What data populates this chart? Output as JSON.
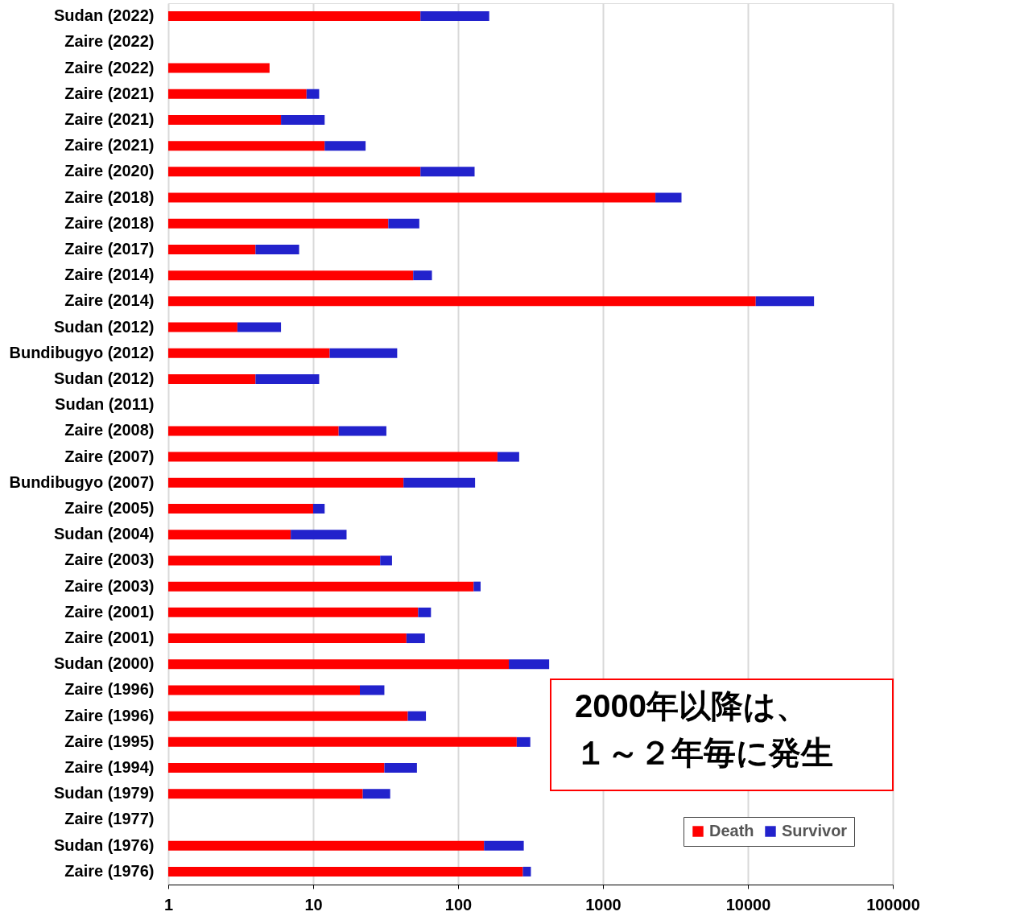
{
  "chart_data": {
    "type": "bar",
    "orientation": "horizontal",
    "stacked": true,
    "log": "x",
    "categories": [
      "Sudan (2022)",
      "Zaire (2022)",
      "Zaire (2022)",
      "Zaire (2021)",
      "Zaire (2021)",
      "Zaire (2021)",
      "Zaire (2020)",
      "Zaire (2018)",
      "Zaire (2018)",
      "Zaire (2017)",
      "Zaire (2014)",
      "Zaire (2014)",
      "Sudan (2012)",
      "Bundibugyo (2012)",
      "Sudan (2012)",
      "Sudan (2011)",
      "Zaire (2008)",
      "Zaire (2007)",
      "Bundibugyo (2007)",
      "Zaire (2005)",
      "Sudan (2004)",
      "Zaire (2003)",
      "Zaire (2003)",
      "Zaire (2001)",
      "Zaire (2001)",
      "Sudan (2000)",
      "Zaire (1996)",
      "Zaire (1996)",
      "Zaire (1995)",
      "Zaire (1994)",
      "Sudan (1979)",
      "Zaire (1977)",
      "Sudan (1976)",
      "Zaire (1976)"
    ],
    "series": [
      {
        "name": "Death",
        "color": "#ff0000",
        "values": [
          55,
          null,
          5,
          9,
          6,
          12,
          55,
          2299,
          33,
          4,
          49,
          11325,
          3,
          13,
          4,
          null,
          15,
          187,
          42,
          10,
          7,
          29,
          128,
          53,
          44,
          224,
          21,
          45,
          254,
          31,
          22,
          null,
          151,
          280
        ]
      },
      {
        "name": "Survivor",
        "color": "#2222cc",
        "values": [
          109,
          null,
          null,
          2,
          6,
          11,
          75,
          1182,
          21,
          4,
          17,
          17275,
          3,
          25,
          7,
          null,
          17,
          77,
          89,
          2,
          10,
          6,
          15,
          12,
          15,
          201,
          10,
          15,
          61,
          21,
          12,
          null,
          133,
          38
        ]
      }
    ],
    "xlim": [
      1,
      100000
    ],
    "xticks": [
      1,
      10,
      100,
      1000,
      10000,
      100000
    ],
    "grid": "x",
    "legend": "bottom right",
    "annotations": [
      "2000年以降は、",
      "１～２年毎に発生"
    ]
  }
}
